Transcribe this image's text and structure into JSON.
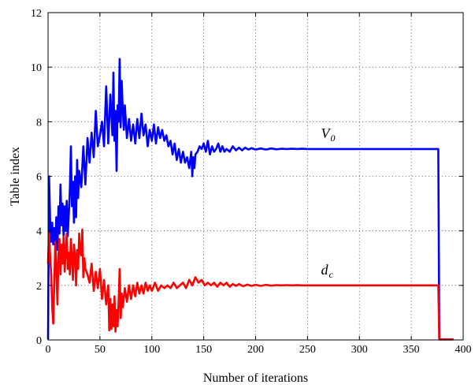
{
  "chart_data": {
    "type": "line",
    "title": "",
    "xlabel": "Number of iterations",
    "ylabel": "Table index",
    "xlim": [
      0,
      400
    ],
    "ylim": [
      0,
      12
    ],
    "xticks": [
      0,
      50,
      100,
      150,
      200,
      250,
      300,
      350,
      400
    ],
    "yticks": [
      0,
      2,
      4,
      6,
      8,
      10,
      12
    ],
    "grid": true,
    "legend": "none",
    "series": [
      {
        "name": "V0",
        "label_main": "V",
        "label_sub": "0",
        "color": "#0000ff",
        "label_at": [
          263,
          7.4
        ],
        "x": [
          0,
          1,
          2,
          3,
          4,
          5,
          6,
          7,
          8,
          9,
          10,
          11,
          12,
          13,
          14,
          15,
          16,
          17,
          18,
          19,
          20,
          21,
          22,
          23,
          24,
          25,
          26,
          27,
          28,
          29,
          30,
          32,
          34,
          36,
          38,
          40,
          42,
          44,
          46,
          48,
          50,
          52,
          54,
          56,
          58,
          60,
          62,
          63,
          64,
          65,
          66,
          67,
          68,
          69,
          70,
          71,
          72,
          73,
          74,
          76,
          78,
          80,
          82,
          84,
          86,
          88,
          90,
          92,
          94,
          96,
          98,
          100,
          102,
          104,
          106,
          108,
          110,
          112,
          114,
          116,
          118,
          120,
          122,
          124,
          126,
          128,
          130,
          132,
          134,
          136,
          138,
          139,
          140,
          141,
          142,
          144,
          146,
          148,
          150,
          152,
          154,
          156,
          158,
          160,
          162,
          164,
          166,
          168,
          170,
          172,
          175,
          178,
          181,
          184,
          187,
          190,
          193,
          196,
          200,
          205,
          210,
          215,
          220,
          225,
          230,
          235,
          240,
          245,
          250,
          255,
          260,
          265,
          270,
          280,
          290,
          300,
          320,
          340,
          360,
          376,
          377,
          378,
          390
        ],
        "y": [
          0.05,
          6.0,
          4.4,
          3.6,
          4.3,
          3.5,
          4.1,
          3.6,
          4.5,
          3.3,
          4.9,
          3.9,
          5.7,
          4.2,
          5.0,
          3.7,
          4.9,
          4.0,
          5.1,
          3.8,
          4.6,
          5.5,
          7.1,
          4.9,
          5.8,
          4.3,
          6.0,
          4.5,
          6.6,
          5.2,
          6.2,
          5.6,
          7.1,
          5.7,
          7.4,
          6.5,
          7.6,
          6.7,
          8.4,
          7.1,
          7.5,
          8.0,
          7.1,
          9.3,
          7.2,
          9.0,
          7.5,
          9.8,
          7.3,
          8.4,
          6.2,
          8.6,
          8.0,
          10.3,
          7.8,
          9.5,
          8.4,
          7.7,
          8.6,
          7.4,
          8.1,
          7.3,
          7.9,
          7.2,
          8.1,
          7.4,
          8.3,
          7.5,
          7.9,
          7.1,
          7.7,
          7.3,
          7.9,
          7.2,
          7.8,
          7.4,
          7.7,
          7.3,
          7.5,
          7.1,
          7.3,
          6.8,
          7.2,
          6.6,
          7.0,
          6.5,
          6.9,
          6.5,
          6.7,
          6.3,
          6.9,
          6.0,
          6.7,
          6.3,
          6.8,
          6.9,
          7.1,
          7.0,
          7.2,
          6.9,
          7.3,
          6.8,
          7.1,
          6.9,
          7.0,
          7.2,
          6.9,
          7.1,
          6.9,
          7.0,
          6.9,
          7.1,
          6.95,
          7.05,
          6.95,
          7.05,
          6.98,
          7.03,
          6.98,
          7.02,
          6.98,
          7.02,
          6.99,
          7.01,
          7.0,
          7.01,
          7.0,
          7.01,
          7.0,
          7.0,
          7.0,
          7.0,
          7.0,
          7.0,
          7.0,
          7.0,
          7.0,
          7.0,
          7.0,
          7.0,
          0.02,
          0.02,
          0.02
        ]
      },
      {
        "name": "dc",
        "label_main": "d",
        "label_sub": "c",
        "color": "#ff0000",
        "label_at": [
          263,
          2.4
        ],
        "x": [
          0,
          1,
          2,
          3,
          4,
          5,
          6,
          7,
          8,
          9,
          10,
          11,
          12,
          13,
          14,
          15,
          16,
          17,
          18,
          19,
          20,
          21,
          22,
          23,
          24,
          25,
          26,
          27,
          28,
          29,
          30,
          31,
          32,
          33,
          34,
          35,
          36,
          38,
          40,
          42,
          44,
          46,
          48,
          50,
          52,
          54,
          56,
          58,
          59,
          60,
          61,
          62,
          63,
          64,
          65,
          66,
          67,
          68,
          69,
          70,
          71,
          72,
          74,
          76,
          78,
          80,
          82,
          84,
          86,
          88,
          90,
          92,
          94,
          96,
          98,
          100,
          103,
          106,
          109,
          112,
          115,
          118,
          121,
          124,
          127,
          130,
          133,
          136,
          139,
          142,
          145,
          148,
          151,
          154,
          157,
          160,
          163,
          166,
          169,
          172,
          175,
          178,
          181,
          184,
          188,
          192,
          196,
          200,
          205,
          210,
          215,
          220,
          225,
          230,
          235,
          240,
          245,
          250,
          260,
          270,
          280,
          290,
          300,
          320,
          340,
          360,
          376,
          377,
          378,
          390
        ],
        "y": [
          2.8,
          3.9,
          3.1,
          2.4,
          1.2,
          0.6,
          2.0,
          3.6,
          2.7,
          1.3,
          3.1,
          3.7,
          2.4,
          3.5,
          2.8,
          3.8,
          2.5,
          3.3,
          3.9,
          2.6,
          3.2,
          2.4,
          3.7,
          3.0,
          2.2,
          3.5,
          3.1,
          2.0,
          3.3,
          2.6,
          3.9,
          3.2,
          3.1,
          4.05,
          2.3,
          3.0,
          2.6,
          2.4,
          2.1,
          2.8,
          1.8,
          2.5,
          1.9,
          2.6,
          1.5,
          2.2,
          1.3,
          2.0,
          0.35,
          1.5,
          0.4,
          1.3,
          0.5,
          1.6,
          0.3,
          1.1,
          0.5,
          1.4,
          2.6,
          0.8,
          1.7,
          1.2,
          1.9,
          1.4,
          2.0,
          1.5,
          2.0,
          1.6,
          2.1,
          1.7,
          2.0,
          1.7,
          2.1,
          1.8,
          2.0,
          1.8,
          2.1,
          1.8,
          2.0,
          1.9,
          2.0,
          1.9,
          2.1,
          1.9,
          2.0,
          2.1,
          1.9,
          2.2,
          2.0,
          2.3,
          2.1,
          2.2,
          2.0,
          2.1,
          2.0,
          2.1,
          1.95,
          2.1,
          2.0,
          2.1,
          1.95,
          2.05,
          1.98,
          2.05,
          1.97,
          2.03,
          1.98,
          2.02,
          1.98,
          2.02,
          1.99,
          2.01,
          2.0,
          2.01,
          2.0,
          2.01,
          2.0,
          2.0,
          2.0,
          2.0,
          2.0,
          2.0,
          2.0,
          2.0,
          2.0,
          2.0,
          2.0,
          0.02,
          0.02,
          0.02
        ]
      }
    ]
  }
}
